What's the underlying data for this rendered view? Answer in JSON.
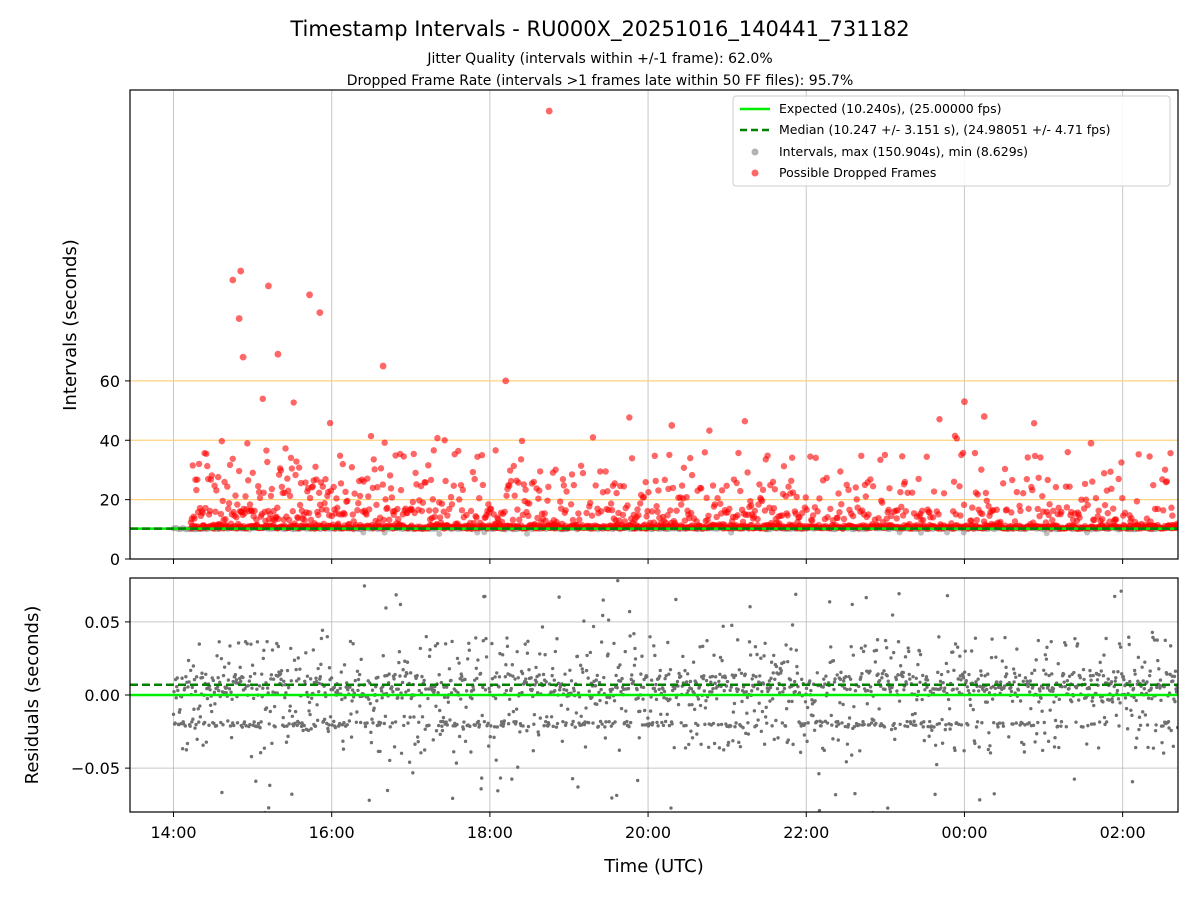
{
  "chart_data": [
    {
      "type": "scatter",
      "title": "Timestamp Intervals - RU000X_20251016_140441_731182",
      "subtitle_lines": [
        "Jitter Quality (intervals within +/-1 frame): 62.0%",
        "Dropped Frame Rate (intervals >1 frames late within 50 FF files): 95.7%"
      ],
      "xlabel": "",
      "ylabel": "Intervals (seconds)",
      "xlim_hours": [
        13.45,
        26.7
      ],
      "ylim": [
        0,
        158
      ],
      "yticks": [
        0,
        20,
        40,
        60
      ],
      "ytick_labels": [
        "0",
        "20",
        "40",
        "60"
      ],
      "reference_lines": [
        20,
        40,
        60
      ],
      "reference_line_color": "#ffd27f",
      "expected_value": 10.24,
      "median_value": 10.247,
      "grid": true,
      "legend_position": "top-right",
      "legend": [
        {
          "label": "Expected (10.240s), (25.00000 fps)",
          "kind": "solid-line",
          "color": "#00ee00"
        },
        {
          "label": "Median (10.247 +/- 3.151 s), (24.98051 +/- 4.71 fps)",
          "kind": "dashed-line",
          "color": "#008000"
        },
        {
          "label": "Intervals, max (150.904s), min (8.629s)",
          "kind": "marker",
          "color": "#808080"
        },
        {
          "label": "Possible Dropped Frames",
          "kind": "marker",
          "color": "#ff0000"
        }
      ],
      "series": [
        {
          "name": "Intervals",
          "color": "#808080",
          "x_range_hours": [
            14.0,
            26.7
          ],
          "baseline": 10.24
        },
        {
          "name": "Possible Dropped Frames",
          "color": "#ff0000",
          "notable_points": [
            {
              "x": 14.75,
              "y": 94
            },
            {
              "x": 14.85,
              "y": 97
            },
            {
              "x": 14.83,
              "y": 81
            },
            {
              "x": 14.88,
              "y": 68
            },
            {
              "x": 15.2,
              "y": 92
            },
            {
              "x": 15.32,
              "y": 69
            },
            {
              "x": 15.72,
              "y": 89
            },
            {
              "x": 15.85,
              "y": 83
            },
            {
              "x": 16.65,
              "y": 65
            },
            {
              "x": 18.2,
              "y": 60
            },
            {
              "x": 18.75,
              "y": 150.9
            },
            {
              "x": 20.3,
              "y": 45
            },
            {
              "x": 24.0,
              "y": 53
            },
            {
              "x": 24.25,
              "y": 48
            },
            {
              "x": 25.6,
              "y": 39
            }
          ]
        }
      ],
      "y_max_label": "max (150.904s)"
    },
    {
      "type": "scatter",
      "xlabel": "Time (UTC)",
      "ylabel": "Residuals (seconds)",
      "xlim_hours": [
        13.45,
        26.7
      ],
      "ylim": [
        -0.08,
        0.08
      ],
      "yticks": [
        -0.05,
        0.0,
        0.05
      ],
      "ytick_labels": [
        "−0.05",
        "0.00",
        "0.05"
      ],
      "xticks_hours": [
        14,
        16,
        18,
        20,
        22,
        24,
        26
      ],
      "xtick_labels": [
        "14:00",
        "16:00",
        "18:00",
        "20:00",
        "22:00",
        "00:00",
        "02:00"
      ],
      "expected_value": 0.0,
      "median_value": 0.007,
      "grid": true,
      "series": [
        {
          "name": "Residuals",
          "color": "#808080",
          "x_range_hours": [
            14.0,
            26.7
          ]
        }
      ]
    }
  ]
}
